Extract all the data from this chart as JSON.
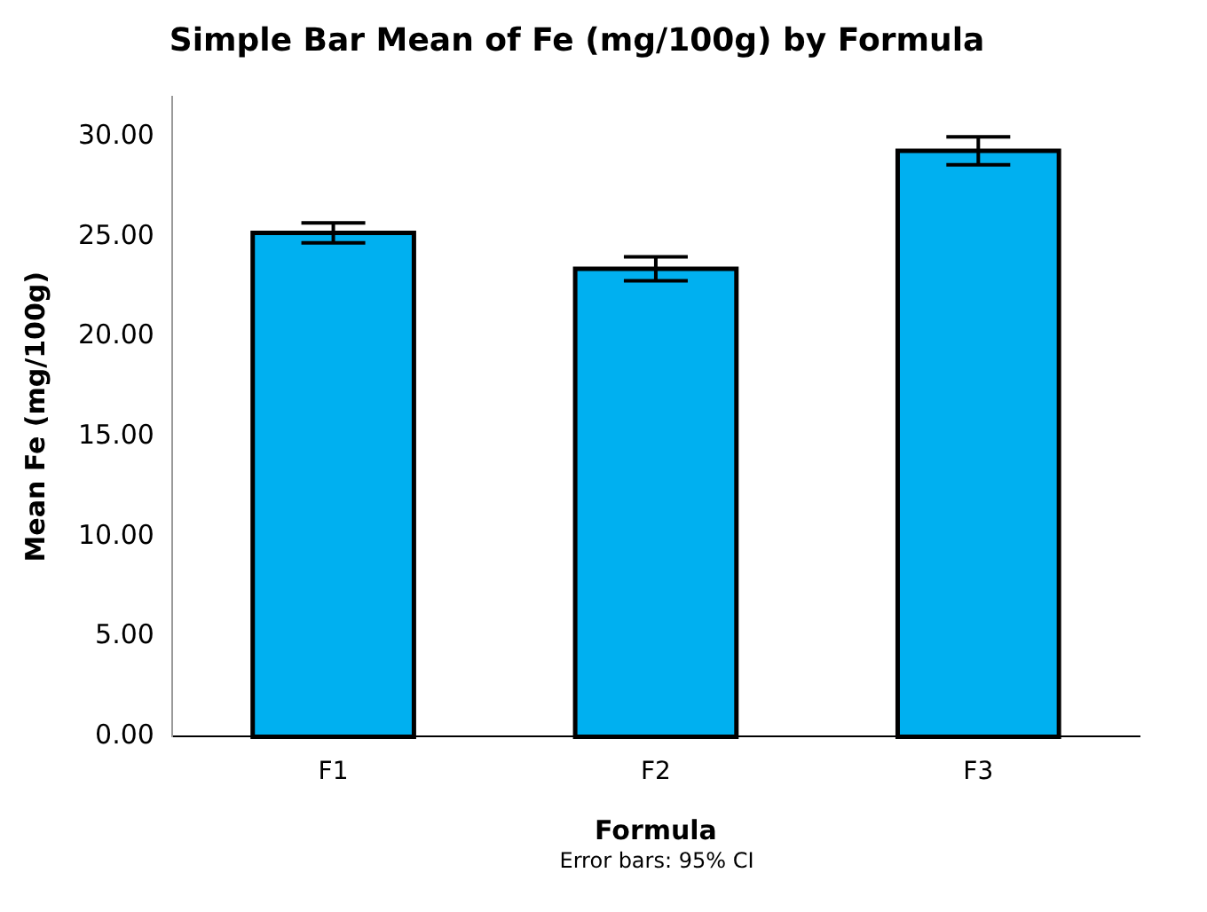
{
  "chart_data": {
    "type": "bar",
    "title": "Simple Bar Mean of Fe (mg/100g) by Formula",
    "xlabel": "Formula",
    "ylabel": "Mean Fe (mg/100g)",
    "categories": [
      "F1",
      "F2",
      "F3"
    ],
    "values": [
      25.2,
      23.4,
      29.3
    ],
    "errors": [
      0.5,
      0.6,
      0.7
    ],
    "color": "#00b0f0",
    "ylim": [
      0,
      32
    ],
    "yticks": [
      {
        "value": 0,
        "label": "0.00"
      },
      {
        "value": 5,
        "label": "5.00"
      },
      {
        "value": 10,
        "label": "10.00"
      },
      {
        "value": 15,
        "label": "15.00"
      },
      {
        "value": 20,
        "label": "20.00"
      },
      {
        "value": 25,
        "label": "25.00"
      },
      {
        "value": 30,
        "label": "30.00"
      }
    ],
    "grid": false,
    "legend": false,
    "annotations": [
      "Error bars: 95% CI"
    ]
  }
}
